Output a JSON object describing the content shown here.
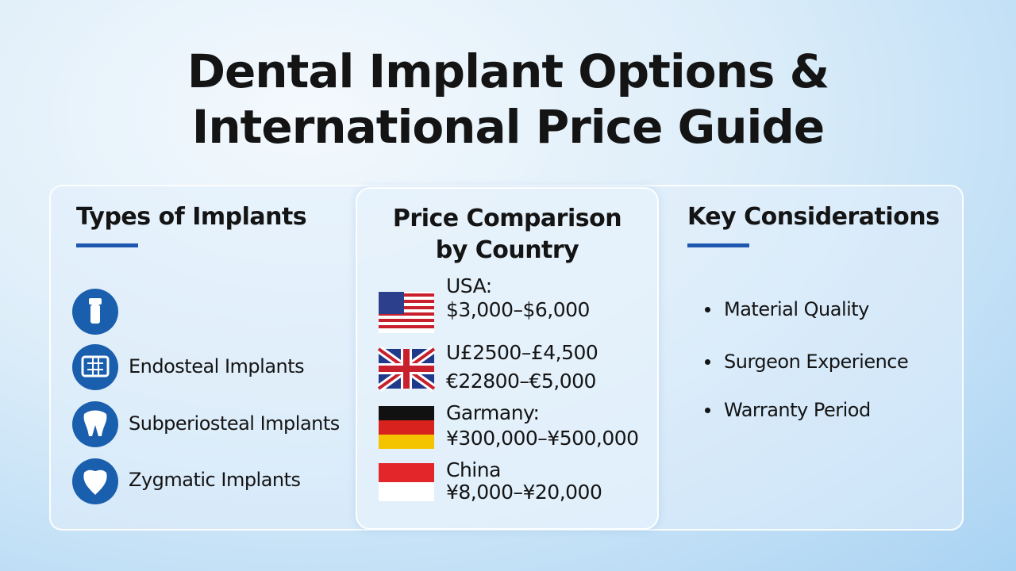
{
  "header": {
    "title": [
      "Dental Implant Options &",
      "International Price Guide"
    ]
  },
  "types": {
    "heading": "Types of Implants",
    "items": [
      "Endosteal Implants",
      "Subperiosteal Implants",
      "Zygmatic Implants"
    ]
  },
  "prices": {
    "heading": [
      "Price Comparison",
      "by Country"
    ],
    "rows": [
      {
        "lines": [
          "USA:",
          "$3,000–$6,000"
        ]
      },
      {
        "lines": [
          "U£2500–£4,500",
          "€22800–€5,000"
        ]
      },
      {
        "lines": [
          "Garmany:",
          "¥300,000–¥500,000"
        ]
      },
      {
        "lines": [
          "China",
          "¥8,000–¥20,000"
        ]
      }
    ]
  },
  "considerations": {
    "heading": "Key Considerations",
    "items": [
      "Material Quality",
      "Surgeon Experience",
      "Warranty Period"
    ]
  }
}
